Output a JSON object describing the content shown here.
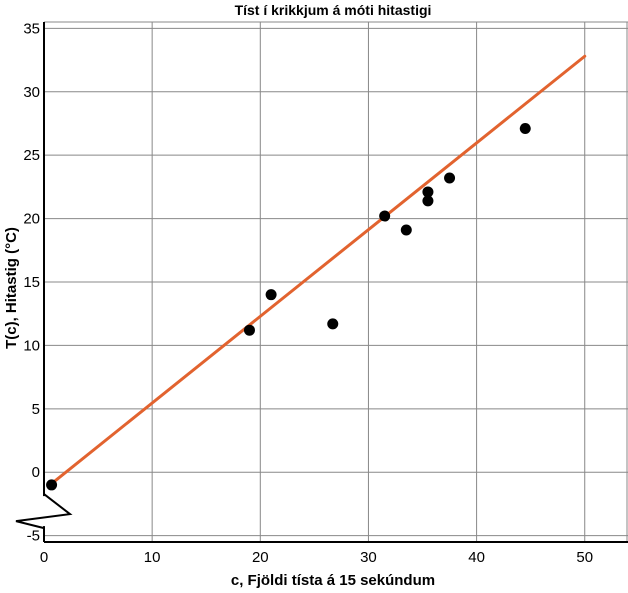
{
  "colors": {
    "trend_line": "#e2632f",
    "points": "#000000",
    "grid": "#888888",
    "axis": "#000000",
    "background": "#ffffff"
  },
  "chart_data": {
    "type": "scatter",
    "title": "Tíst í krikkjum á móti hitastigi",
    "xlabel": "c, Fjöldi tísta á 15 sekúndum",
    "ylabel": "T(c), Hitastig (°C)",
    "xlim": [
      0,
      54
    ],
    "ylim": [
      -5.5,
      35.5
    ],
    "xticks": [
      0,
      10,
      20,
      30,
      40,
      50
    ],
    "yticks": [
      -5,
      0,
      5,
      10,
      15,
      20,
      25,
      30,
      35
    ],
    "grid": true,
    "y_axis_break": true,
    "points": [
      {
        "x": 0.7,
        "y": -1.0
      },
      {
        "x": 19.0,
        "y": 11.2
      },
      {
        "x": 21.0,
        "y": 14.0
      },
      {
        "x": 26.7,
        "y": 11.7
      },
      {
        "x": 31.5,
        "y": 20.2
      },
      {
        "x": 33.5,
        "y": 19.1
      },
      {
        "x": 35.5,
        "y": 22.1
      },
      {
        "x": 35.5,
        "y": 21.4
      },
      {
        "x": 37.5,
        "y": 23.2
      },
      {
        "x": 44.5,
        "y": 27.1
      }
    ],
    "trend_line": {
      "x": [
        0.7,
        50.0
      ],
      "y": [
        -0.9,
        32.8
      ]
    }
  }
}
